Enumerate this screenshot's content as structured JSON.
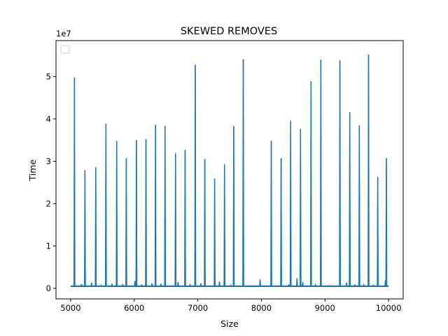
{
  "chart_data": {
    "type": "line",
    "title": "SKEWED REMOVES",
    "xlabel": "Size",
    "ylabel": "Time",
    "y_multiplier_label": "1e7",
    "xlim": [
      4770,
      10230
    ],
    "ylim": [
      -0.25,
      5.85
    ],
    "y_unit_multiplier": 10000000,
    "x_ticks": [
      5000,
      6000,
      7000,
      8000,
      9000,
      10000
    ],
    "x_tick_labels": [
      "5000",
      "6000",
      "7000",
      "8000",
      "9000",
      "10000"
    ],
    "y_ticks": [
      0,
      1,
      2,
      3,
      4,
      5
    ],
    "y_tick_labels": [
      "0",
      "1",
      "2",
      "3",
      "4",
      "5"
    ],
    "grid": false,
    "legend": {
      "placement": "upper-left",
      "entries": []
    },
    "series_color": "#1f77b4",
    "series": [
      {
        "baseline": 0.05,
        "x": [
          5000,
          10000
        ],
        "major_spikes": [
          [
            5060,
            4.98
          ],
          [
            5225,
            2.79
          ],
          [
            5395,
            2.86
          ],
          [
            5555,
            3.89
          ],
          [
            5725,
            3.48
          ],
          [
            5875,
            3.07
          ],
          [
            6035,
            3.5
          ],
          [
            6185,
            3.52
          ],
          [
            6335,
            3.86
          ],
          [
            6485,
            3.84
          ],
          [
            6650,
            3.19
          ],
          [
            6800,
            3.27
          ],
          [
            6960,
            5.28
          ],
          [
            7110,
            3.05
          ],
          [
            7265,
            2.59
          ],
          [
            7420,
            2.93
          ],
          [
            7565,
            3.83
          ],
          [
            7715,
            5.41
          ],
          [
            8155,
            3.48
          ],
          [
            8310,
            3.07
          ],
          [
            8460,
            3.96
          ],
          [
            8615,
            3.77
          ],
          [
            8780,
            4.89
          ],
          [
            8935,
            5.4
          ],
          [
            9235,
            5.38
          ],
          [
            9390,
            4.16
          ],
          [
            9540,
            3.85
          ],
          [
            9685,
            5.52
          ],
          [
            9830,
            2.63
          ],
          [
            9965,
            3.07
          ]
        ],
        "minor_spikes": [
          [
            5170,
            0.1
          ],
          [
            5330,
            0.14
          ],
          [
            5480,
            0.07
          ],
          [
            5650,
            0.11
          ],
          [
            5820,
            0.1
          ],
          [
            6010,
            0.17
          ],
          [
            6120,
            0.09
          ],
          [
            6280,
            0.12
          ],
          [
            6420,
            0.11
          ],
          [
            6690,
            0.15
          ],
          [
            6880,
            0.08
          ],
          [
            7050,
            0.12
          ],
          [
            7340,
            0.16
          ],
          [
            7520,
            0.07
          ],
          [
            7980,
            0.21
          ],
          [
            8430,
            0.09
          ],
          [
            8560,
            0.24
          ],
          [
            8650,
            0.15
          ],
          [
            8850,
            0.08
          ],
          [
            9080,
            0.06
          ],
          [
            9340,
            0.14
          ],
          [
            9470,
            0.09
          ],
          [
            9610,
            0.08
          ],
          [
            9760,
            0.07
          ],
          [
            9950,
            0.19
          ]
        ]
      }
    ]
  }
}
